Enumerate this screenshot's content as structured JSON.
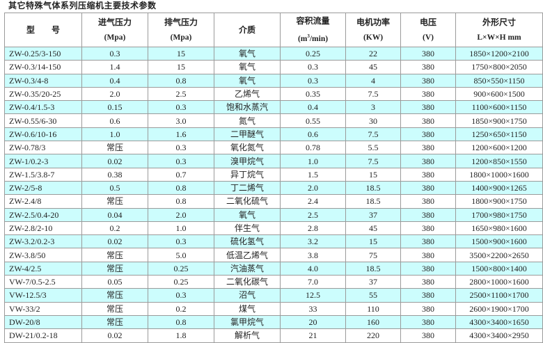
{
  "title": "其它特殊气体系列压缩机主要技术参数",
  "colors": {
    "alt_row": "#ccfdfd",
    "border": "#9a9a9a"
  },
  "headers": {
    "model": "型　　号",
    "inlet": {
      "label": "进气压力",
      "unit": "(Mpa)"
    },
    "outlet": {
      "label": "排气压力",
      "unit": "(Mpa)"
    },
    "medium": {
      "label": "介质"
    },
    "flow": {
      "label": "容积流量",
      "unit_pre": "(m",
      "unit_sup": "3",
      "unit_post": "/min)"
    },
    "power": {
      "label": "电机功率",
      "unit": "(KW)"
    },
    "voltage": {
      "label": "电压",
      "unit": "(V)"
    },
    "dims": {
      "label": "外形尺寸",
      "unit": "L×W×H mm"
    }
  },
  "rows": [
    [
      "ZW-0.25/3-150",
      "0.3",
      "15",
      "氧气",
      "0.25",
      "22",
      "380",
      "1850×1200×2100"
    ],
    [
      "ZW-0.3/14-150",
      "1.4",
      "15",
      "氧气",
      "0.3",
      "45",
      "380",
      "1750×800×2050"
    ],
    [
      "ZW-0.3/4-8",
      "0.4",
      "0.8",
      "氧气",
      "0.3",
      "4",
      "380",
      "850×550×1150"
    ],
    [
      "ZW-0.35/20-25",
      "2.0",
      "2.5",
      "乙烯气",
      "0.35",
      "7.5",
      "380",
      "900×600×1500"
    ],
    [
      "ZW-0.4/1.5-3",
      "0.15",
      "0.3",
      "饱和水蒸汽",
      "0.4",
      "3",
      "380",
      "1100×600×1150"
    ],
    [
      "ZW-0.55/6-30",
      "0.6",
      "3.0",
      "氮气",
      "0.55",
      "30",
      "380",
      "1850×900×1750"
    ],
    [
      "ZW-0.6/10-16",
      "1.0",
      "1.6",
      "二甲醚气",
      "0.6",
      "7.5",
      "380",
      "1250×650×1150"
    ],
    [
      "ZW-0.78/3",
      "常压",
      "0.3",
      "氧化氮气",
      "0.78",
      "5.5",
      "380",
      "1200×600×1200"
    ],
    [
      "ZW-1/0.2-3",
      "0.02",
      "0.3",
      "溴甲烷气",
      "1.0",
      "7.5",
      "380",
      "1200×850×1550"
    ],
    [
      "ZW-1.5/3.8-7",
      "0.38",
      "0.7",
      "异丁烷气",
      "1.5",
      "15",
      "380",
      "1800×1000×1600"
    ],
    [
      "ZW-2/5-8",
      "0.5",
      "0.8",
      "丁二烯气",
      "2.0",
      "18.5",
      "380",
      "1400×900×1265"
    ],
    [
      "ZW-2.4/8",
      "常压",
      "0.8",
      "二氧化硫气",
      "2.4",
      "18.5",
      "380",
      "1800×900×1750"
    ],
    [
      "ZW-2.5/0.4-20",
      "0.04",
      "2.0",
      "氧气",
      "2.5",
      "37",
      "380",
      "1700×980×1750"
    ],
    [
      "ZW-2.8/2-10",
      "0.2",
      "1.0",
      "伴生气",
      "2.8",
      "45",
      "380",
      "1650×980×1600"
    ],
    [
      "ZW-3.2/0.2-3",
      "0.02",
      "0.3",
      "硫化氢气",
      "3.2",
      "15",
      "380",
      "1500×900×1600"
    ],
    [
      "ZW-3.8/50",
      "常压",
      "5.0",
      "低温乙烯气",
      "3.8",
      "75",
      "380",
      "3500×2200×2650"
    ],
    [
      "ZW-4/2.5",
      "常压",
      "0.25",
      "汽油蒸气",
      "4.0",
      "18.5",
      "380",
      "1500×800×1400"
    ],
    [
      "VW-7/0.5-2.5",
      "0.05",
      "0.25",
      "二氧化碳气",
      "7.0",
      "37",
      "380",
      "2800×1000×1600"
    ],
    [
      "VW-12.5/3",
      "常压",
      "0.3",
      "沼气",
      "12.5",
      "55",
      "380",
      "2500×1100×1700"
    ],
    [
      "VW-33/2",
      "常压",
      "0.2",
      "煤气",
      "33",
      "110",
      "380",
      "2600×1900×1700"
    ],
    [
      "DW-20/8",
      "常压",
      "0.8",
      "氯甲烷气",
      "20",
      "160",
      "380",
      "4300×3400×1650"
    ],
    [
      "DW-21/0.2-18",
      "0.02",
      "1.8",
      "解析气",
      "21",
      "220",
      "380",
      "4300×3400×2950"
    ]
  ]
}
